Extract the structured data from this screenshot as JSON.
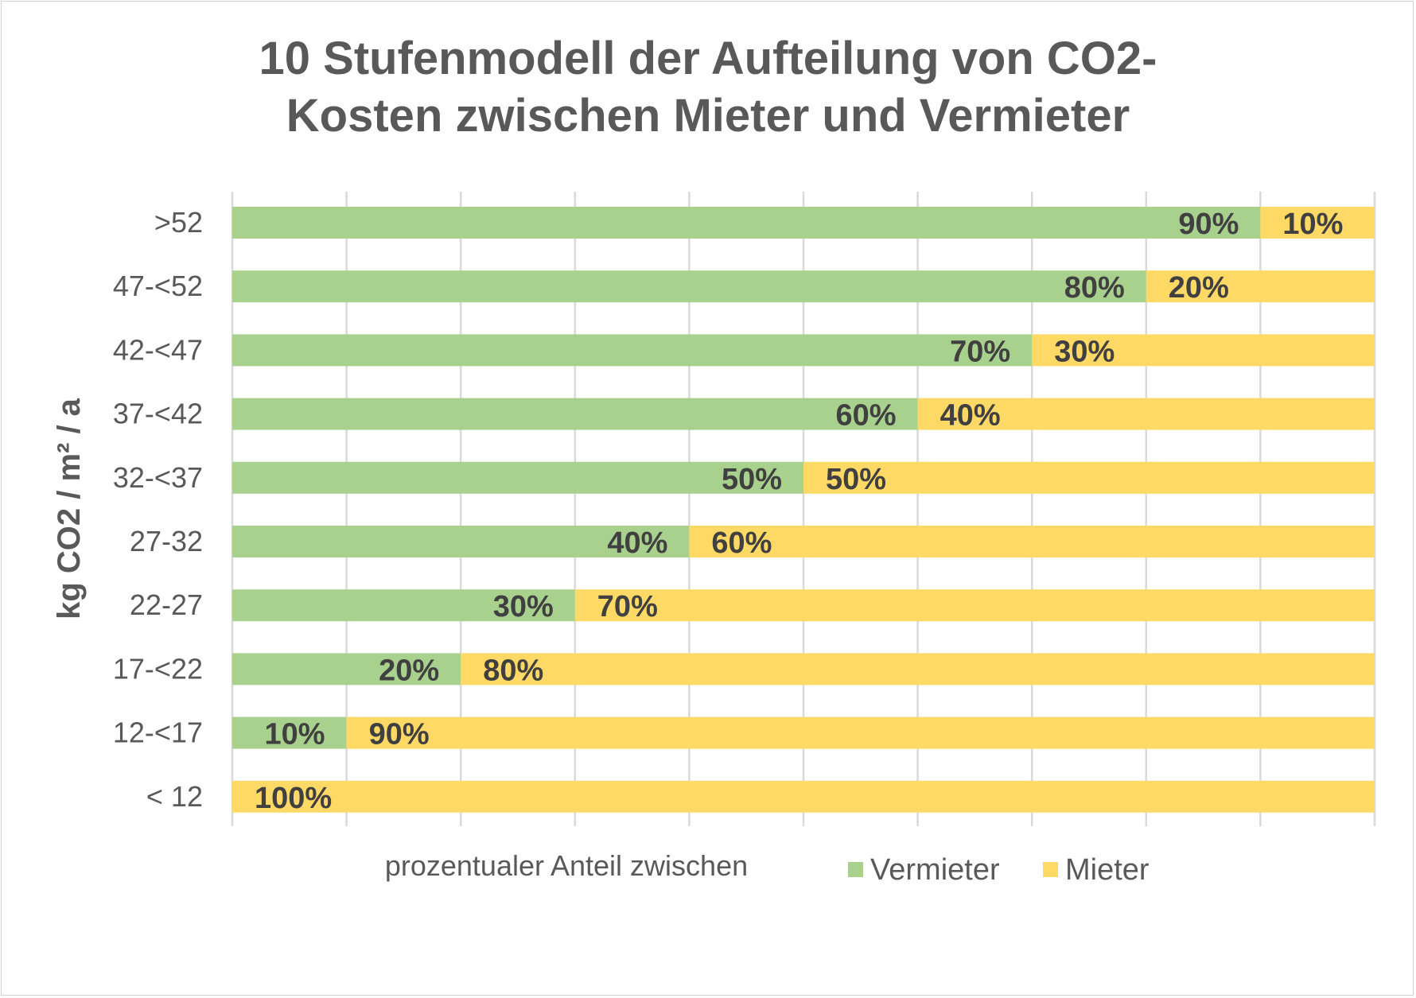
{
  "chart_data": {
    "type": "bar",
    "stacked": "percent",
    "orientation": "horizontal",
    "title_lines": [
      "10 Stufenmodell der Aufteilung von CO2-",
      "Kosten zwischen Mieter und Vermieter"
    ],
    "ylabel": "kg CO2 / m² / a",
    "xlabel": "prozentualer Anteil zwischen",
    "categories": [
      ">52",
      "47-<52",
      "42-<47",
      "37-<42",
      "32-<37",
      "27-32",
      "22-27",
      "17-<22",
      "12-<17",
      "< 12"
    ],
    "series": [
      {
        "name": "Vermieter",
        "color": "#A9D18E",
        "values": [
          90,
          80,
          70,
          60,
          50,
          40,
          30,
          20,
          10,
          0
        ],
        "labels": [
          "90%",
          "80%",
          "70%",
          "60%",
          "50%",
          "40%",
          "30%",
          "20%",
          "10%",
          ""
        ]
      },
      {
        "name": "Mieter",
        "color": "#FFD966",
        "values": [
          10,
          20,
          30,
          40,
          50,
          60,
          70,
          80,
          90,
          100
        ],
        "labels": [
          "10%",
          "20%",
          "30%",
          "40%",
          "50%",
          "60%",
          "70%",
          "80%",
          "90%",
          "100%"
        ]
      }
    ],
    "xlim": [
      0,
      100
    ],
    "grid": "vertical, every 10%",
    "x_tick_labels_shown": false,
    "legend_position": "bottom"
  }
}
